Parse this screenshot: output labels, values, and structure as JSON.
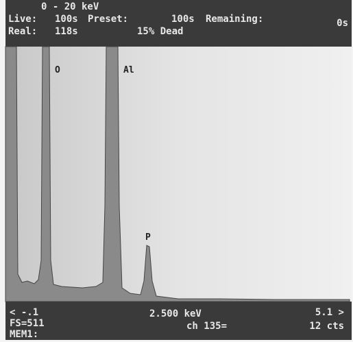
{
  "header": {
    "range": "0 - 20 keV",
    "live_label": "Live:",
    "live": "100s",
    "preset_label": "Preset:",
    "preset": "100s",
    "remaining_label": "Remaining:",
    "remaining": "0s",
    "real_label": "Real:",
    "real": "118s",
    "dead": "15% Dead"
  },
  "peaks": [
    {
      "label": "O"
    },
    {
      "label": "Al"
    },
    {
      "label": "P"
    }
  ],
  "footer": {
    "left": "< -.1",
    "center": "2.500 keV",
    "right": "5.1 >",
    "fs": "FS=511",
    "channel": "ch 135=",
    "counts": "12 cts",
    "memory": "MEM1:"
  }
}
